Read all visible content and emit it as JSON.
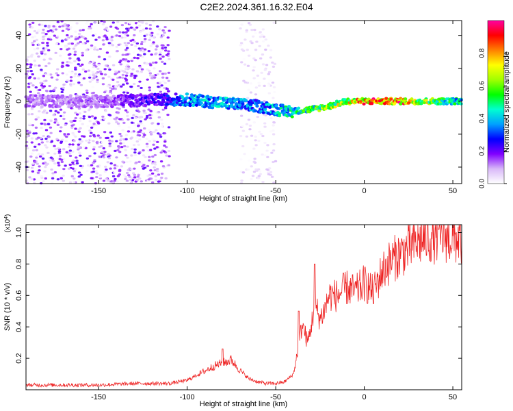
{
  "title": "C2E2.2024.361.16.32.E04",
  "chart_data": [
    {
      "type": "heatmap",
      "name": "spectrogram",
      "xlabel": "Height of straight line (km)",
      "ylabel": "Frequency (Hz)",
      "xlim": [
        -191,
        55
      ],
      "ylim": [
        -50,
        49
      ],
      "xticks": [
        -150,
        -100,
        -50,
        0,
        50
      ],
      "yticks": [
        -40,
        -20,
        0,
        20,
        40
      ],
      "colorbar": {
        "label": "Normalized spectral amplitude",
        "range": [
          0,
          1
        ],
        "ticks": [
          0.0,
          0.2,
          0.4,
          0.6,
          0.8
        ],
        "colormap": [
          "#ffffff",
          "#d8b8f8",
          "#8000ff",
          "#0000ff",
          "#00a0ff",
          "#00ffd0",
          "#00ff00",
          "#a0ff00",
          "#ffff00",
          "#ff8000",
          "#ff0000",
          "#ff00a0"
        ]
      },
      "ridge": {
        "description": "dominant frequency band vs height",
        "x": [
          -191,
          -150,
          -110,
          -100,
          -80,
          -60,
          -45,
          -40,
          -30,
          -20,
          -10,
          0,
          20,
          55
        ],
        "center_hz": [
          0,
          0,
          1,
          1,
          -1,
          -3,
          -6,
          -6,
          -5,
          -3,
          0,
          0,
          0,
          0
        ],
        "peak_amplitude": [
          0.15,
          0.15,
          0.3,
          0.45,
          0.45,
          0.4,
          0.5,
          0.55,
          0.6,
          0.7,
          0.8,
          0.95,
          0.95,
          0.5
        ]
      },
      "noise_regions": [
        {
          "x_range": [
            -191,
            -110
          ],
          "level": "high scattered noise, all frequencies"
        },
        {
          "x_range": [
            -70,
            -50
          ],
          "level": "vertical band of scattered noise"
        }
      ]
    },
    {
      "type": "line",
      "name": "snr",
      "xlabel": "Height of straight line (km)",
      "ylabel": "SNR (10 * v/v)",
      "y_multiplier": "(x10^4)",
      "xlim": [
        -191,
        55
      ],
      "ylim": [
        0,
        1.05
      ],
      "xticks": [
        -150,
        -100,
        -50,
        0,
        50
      ],
      "yticks": [
        0.2,
        0.4,
        0.6,
        0.8,
        1.0
      ],
      "color": "#ee2222",
      "series": [
        {
          "name": "SNR",
          "x": [
            -191,
            -170,
            -150,
            -130,
            -110,
            -100,
            -95,
            -90,
            -85,
            -80,
            -75,
            -70,
            -65,
            -60,
            -55,
            -50,
            -45,
            -40,
            -38,
            -35,
            -32,
            -30,
            -28,
            -25,
            -22,
            -20,
            -15,
            -10,
            -5,
            0,
            5,
            10,
            15,
            20,
            25,
            30,
            35,
            40,
            45,
            50,
            55
          ],
          "y": [
            0.03,
            0.03,
            0.03,
            0.04,
            0.04,
            0.06,
            0.09,
            0.12,
            0.15,
            0.17,
            0.19,
            0.12,
            0.07,
            0.05,
            0.04,
            0.04,
            0.05,
            0.1,
            0.22,
            0.42,
            0.3,
            0.4,
            0.55,
            0.45,
            0.52,
            0.6,
            0.6,
            0.65,
            0.62,
            0.68,
            0.62,
            0.75,
            0.82,
            0.86,
            0.9,
            0.94,
            0.97,
            0.97,
            0.98,
            0.96,
            0.96
          ],
          "spikes": [
            {
              "x": -28,
              "y": 0.8
            },
            {
              "x": -37,
              "y": 0.5
            },
            {
              "x": -80,
              "y": 0.26
            },
            {
              "x": 42,
              "y": 1.02
            }
          ]
        }
      ]
    }
  ]
}
